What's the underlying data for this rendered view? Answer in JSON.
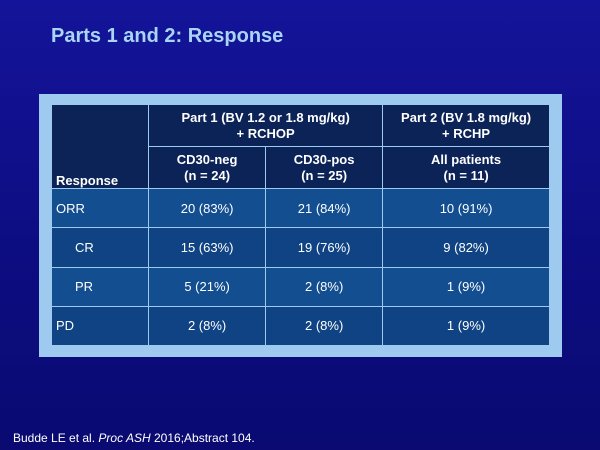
{
  "slide": {
    "title": "Parts 1 and 2: Response"
  },
  "table": {
    "response_header": "Response",
    "group_headers": [
      {
        "line1": "Part 1 (BV 1.2 or 1.8 mg/kg)",
        "line2": "+ RCHOP"
      },
      {
        "line1": "Part 2 (BV 1.8 mg/kg)",
        "line2": "+ RCHP"
      }
    ],
    "sub_headers": [
      {
        "line1": "CD30-neg",
        "line2": "(n = 24)"
      },
      {
        "line1": "CD30-pos",
        "line2": "(n = 25)"
      },
      {
        "line1": "All patients",
        "line2": "(n = 11)"
      }
    ],
    "rows": [
      {
        "label": "ORR",
        "values": [
          "20 (83%)",
          "21 (84%)",
          "10 (91%)"
        ]
      },
      {
        "label": "CR",
        "values": [
          "15 (63%)",
          "19 (76%)",
          "9 (82%)"
        ]
      },
      {
        "label": "PR",
        "values": [
          "5 (21%)",
          "2 (8%)",
          "1 (9%)"
        ]
      },
      {
        "label": "PD",
        "values": [
          "2 (8%)",
          "2 (8%)",
          "1 (9%)"
        ]
      }
    ]
  },
  "footer": {
    "authors": "Budde LE et al.",
    "journal": "Proc ASH",
    "details": "2016;Abstract 104."
  },
  "colors": {
    "background": "#0d0d82",
    "title": "#a9d4f5",
    "frame": "#9fcaf0",
    "header_cell": "#0b2356",
    "body_cell": "#124e90"
  }
}
